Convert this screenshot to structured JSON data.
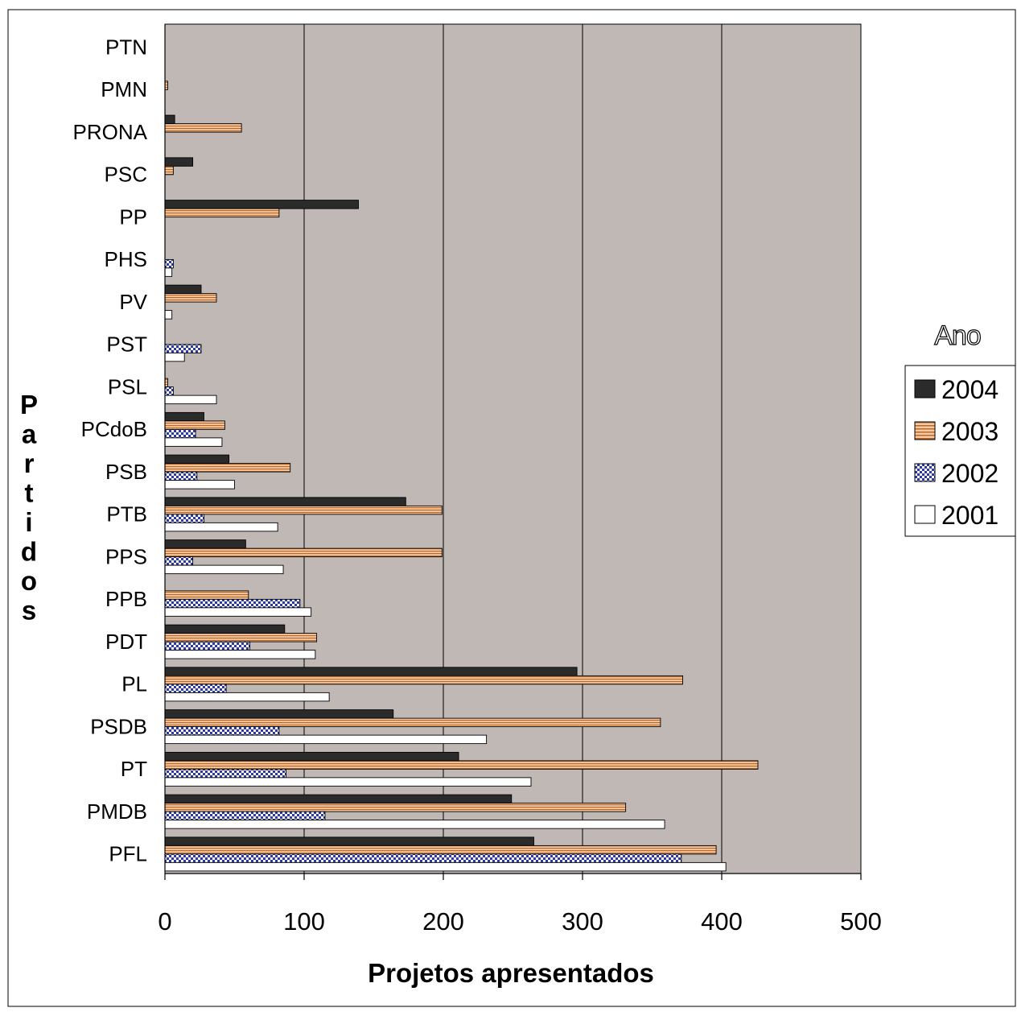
{
  "chart_data": {
    "type": "bar",
    "orientation": "horizontal",
    "title": "",
    "xlabel": "Projetos apresentados",
    "ylabel": "Partidos",
    "xlim": [
      0,
      500
    ],
    "xticks": [
      0,
      100,
      200,
      300,
      400,
      500
    ],
    "grid": true,
    "legend_title": "Ano",
    "legend_position": "right",
    "plot_background": "#c0b8b5",
    "categories": [
      "PTN",
      "PMN",
      "PRONA",
      "PSC",
      "PP",
      "PHS",
      "PV",
      "PST",
      "PSL",
      "PCdoB",
      "PSB",
      "PTB",
      "PPS",
      "PPB",
      "PDT",
      "PL",
      "PSDB",
      "PT",
      "PMDB",
      "PFL"
    ],
    "series": [
      {
        "name": "2004",
        "color": "#2b2b2b",
        "pattern": "solid",
        "values": [
          0,
          0,
          7,
          20,
          139,
          0,
          26,
          0,
          0,
          28,
          46,
          173,
          58,
          0,
          86,
          296,
          164,
          211,
          249,
          265
        ]
      },
      {
        "name": "2003",
        "color": "#f0a86a",
        "pattern": "horizontal-stripes",
        "values": [
          0,
          2,
          55,
          6,
          82,
          0,
          37,
          0,
          2,
          43,
          90,
          199,
          199,
          60,
          109,
          372,
          356,
          426,
          331,
          396
        ]
      },
      {
        "name": "2002",
        "color": "#3a46b4",
        "pattern": "checker",
        "values": [
          0,
          0,
          0,
          0,
          0,
          6,
          0,
          26,
          6,
          22,
          23,
          28,
          20,
          97,
          61,
          44,
          82,
          87,
          115,
          371
        ]
      },
      {
        "name": "2001",
        "color": "#ffffff",
        "pattern": "solid",
        "values": [
          0,
          0,
          0,
          0,
          0,
          5,
          5,
          14,
          37,
          41,
          50,
          81,
          85,
          105,
          108,
          118,
          231,
          263,
          359,
          403
        ]
      }
    ]
  }
}
